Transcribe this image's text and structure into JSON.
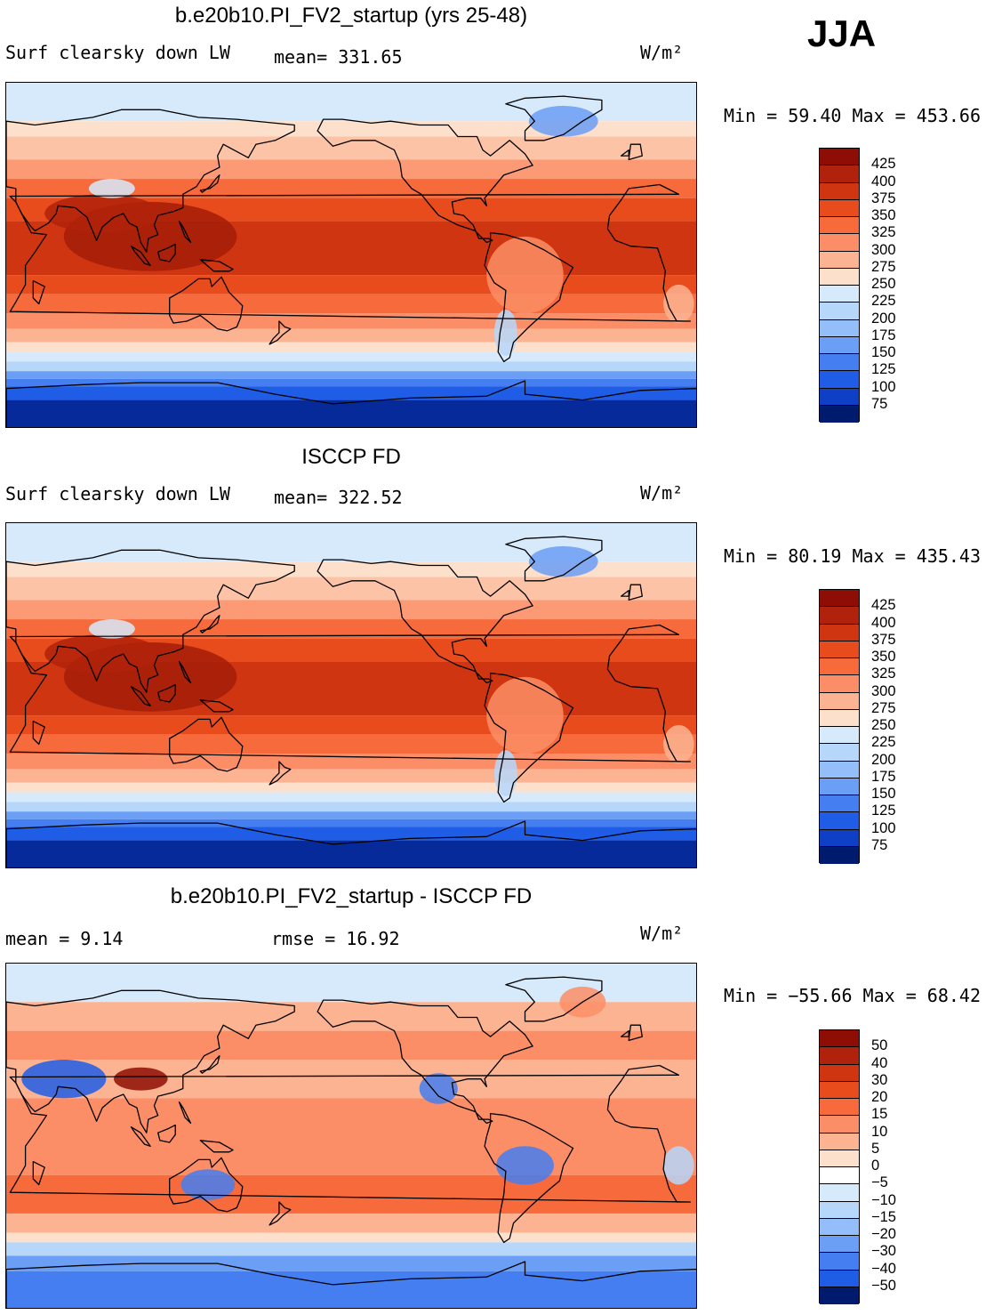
{
  "season": "JJA",
  "units": "W/m²",
  "scale_warm": [
    "#f8ddc9",
    "#fcc3a6",
    "#fca283",
    "#fa7c51",
    "#f55a2c",
    "#e33d16",
    "#c1260d",
    "#8e0e05"
  ],
  "scale_cool": [
    "#d4e8fb",
    "#b6d7fa",
    "#93befa",
    "#6b9ef5",
    "#457ef0",
    "#1f5de6",
    "#0f3fc4",
    "#062a9a",
    "#001a6e"
  ],
  "panels": [
    {
      "title": "b.e20b10.PI_FV2_startup (yrs 25-48)",
      "left_label": "Surf clearsky down LW",
      "stat_label": "mean= 331.65",
      "units_label": "W/m²",
      "minmax": "Min =  59.40 Max = 453.66",
      "kind": "abs",
      "colorbar": {
        "levels": [
          "425",
          "400",
          "375",
          "350",
          "325",
          "300",
          "275",
          "250",
          "225",
          "200",
          "175",
          "150",
          "125",
          "100",
          "75"
        ],
        "colors": [
          "#8e0e05",
          "#b0220b",
          "#cf3510",
          "#e84b1c",
          "#f76a3c",
          "#fb8e66",
          "#fcb392",
          "#fde0cc",
          "#d7eafb",
          "#b6d7fa",
          "#93befa",
          "#6b9ef5",
          "#457ef0",
          "#1f5de6",
          "#0f3fc4",
          "#001a6e"
        ]
      }
    },
    {
      "title": "ISCCP FD",
      "left_label": "Surf clearsky down LW",
      "stat_label": "mean= 322.52",
      "units_label": "W/m²",
      "minmax": "Min =  80.19 Max = 435.43",
      "kind": "abs",
      "colorbar": {
        "levels": [
          "425",
          "400",
          "375",
          "350",
          "325",
          "300",
          "275",
          "250",
          "225",
          "200",
          "175",
          "150",
          "125",
          "100",
          "75"
        ],
        "colors": [
          "#8e0e05",
          "#b0220b",
          "#cf3510",
          "#e84b1c",
          "#f76a3c",
          "#fb8e66",
          "#fcb392",
          "#fde0cc",
          "#d7eafb",
          "#b6d7fa",
          "#93befa",
          "#6b9ef5",
          "#457ef0",
          "#1f5de6",
          "#0f3fc4",
          "#001a6e"
        ]
      }
    },
    {
      "title": "b.e20b10.PI_FV2_startup - ISCCP FD",
      "left_label": "mean =    9.14",
      "stat_label": "rmse =   16.92",
      "units_label": "W/m²",
      "minmax": "Min = −55.66 Max =  68.42",
      "kind": "diff",
      "colorbar": {
        "levels": [
          "50",
          "40",
          "30",
          "20",
          "15",
          "10",
          "5",
          "0",
          "−5",
          "−10",
          "−15",
          "−20",
          "−30",
          "−40",
          "−50"
        ],
        "colors": [
          "#8e0e05",
          "#b0220b",
          "#cf3510",
          "#e84b1c",
          "#f76a3c",
          "#fb8e66",
          "#fcb392",
          "#fde0cc",
          "#ffffff",
          "#d7eafb",
          "#b6d7fa",
          "#93befa",
          "#6b9ef5",
          "#457ef0",
          "#1f5de6",
          "#001a6e"
        ]
      }
    }
  ]
}
